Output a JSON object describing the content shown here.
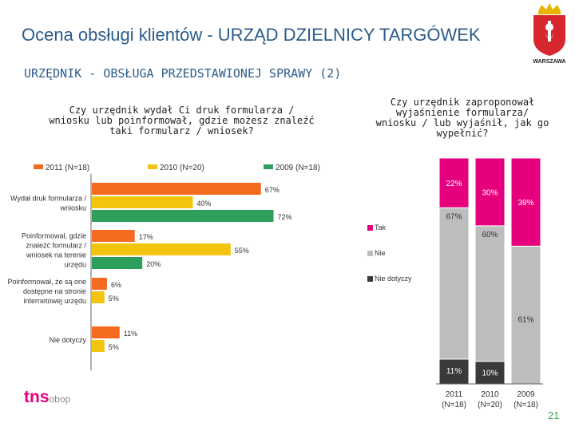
{
  "title": "Ocena obsługi klientów - URZĄD DZIELNICY TARGÓWEK",
  "subtitle": "URZĘDNIK - OBSŁUGA PRZEDSTAWIONEJ SPRAWY (2)",
  "brand": {
    "city": "WARSZAWA",
    "logo_main": "tns",
    "logo_sub": "obop"
  },
  "page_number": "21",
  "colors": {
    "c2011": "#f46a1f",
    "c2010": "#f2c40d",
    "c2009": "#2e9e5c",
    "tak": "#e6007e",
    "nie": "#bdbdbd",
    "nd": "#3a3a3a"
  },
  "chart_data": [
    {
      "type": "bar",
      "orientation": "horizontal",
      "title": "Czy urzędnik wydał Ci druk formularza / wniosku lub poinformował, gdzie możesz znaleźć taki formularz / wniosek?",
      "legend": [
        "2011 (N=18)",
        "2010 (N=20)",
        "2009 (N=18)"
      ],
      "categories": [
        "Wydał druk formularza / wniosku",
        "Poinformował, gdzie znaleźć formularz / wniosek na terenie urzędu",
        "Poinformował, że są one dostępne na stronie internetowej urzędu",
        "Nie dotyczy"
      ],
      "series": [
        {
          "name": "2011 (N=18)",
          "values": [
            67,
            17,
            6,
            11
          ],
          "labels": [
            "67%",
            "17%",
            "6%",
            "11%"
          ]
        },
        {
          "name": "2010 (N=20)",
          "values": [
            40,
            55,
            5,
            5
          ],
          "labels": [
            "40%",
            "55%",
            "5%",
            "5%"
          ]
        },
        {
          "name": "2009 (N=18)",
          "values": [
            72,
            20,
            null,
            null
          ],
          "labels": [
            "72%",
            "20%",
            null,
            null
          ]
        }
      ],
      "xlim": [
        0,
        100
      ]
    },
    {
      "type": "bar",
      "stacked": true,
      "title": "Czy urzędnik zaproponował wyjaśnienie formularza/ wniosku / lub wyjaśnił, jak go wypełnić?",
      "categories": [
        "2011 (N=18)",
        "2010 (N=20)",
        "2009 (N=18)"
      ],
      "category_year": [
        "2011",
        "2010",
        "2009"
      ],
      "category_n": [
        "(N=18)",
        "(N=20)",
        "(N=18)"
      ],
      "series": [
        {
          "name": "Nie dotyczy",
          "values": [
            11,
            10,
            0
          ],
          "labels": [
            "11%",
            "10%",
            null
          ]
        },
        {
          "name": "Nie",
          "values": [
            67,
            60,
            61
          ],
          "labels": [
            "67%",
            "60%",
            "61%"
          ]
        },
        {
          "name": "Tak",
          "values": [
            22,
            30,
            39
          ],
          "labels": [
            "22%",
            "30%",
            "39%"
          ]
        }
      ],
      "legend": [
        "Tak",
        "Nie",
        "Nie dotyczy"
      ],
      "ylim": [
        0,
        100
      ]
    }
  ]
}
